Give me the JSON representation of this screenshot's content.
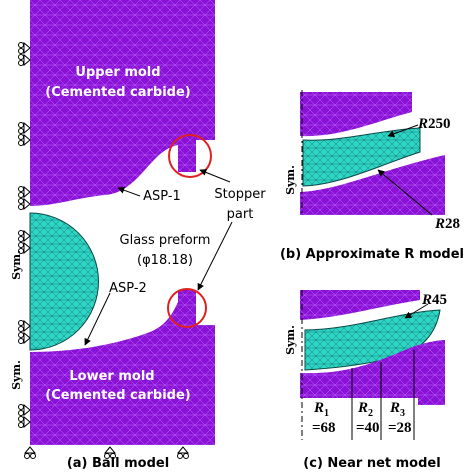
{
  "panel_a": {
    "caption": "(a) Ball model",
    "upper_mold": [
      "Upper mold",
      "(Cemented carbide)"
    ],
    "preform": [
      "Glass preform",
      "(φ18.18)"
    ],
    "lower_mold": [
      "Lower mold",
      "(Cemented carbide)"
    ],
    "asp1": "ASP-1",
    "asp2": "ASP-2",
    "stopper": [
      "Stopper",
      "part"
    ],
    "sym_labels": [
      "Sym.",
      "Sym."
    ]
  },
  "panel_b": {
    "caption": "(b) Approximate R model",
    "sym": "Sym.",
    "r_upper": {
      "symbol": "R",
      "number": "250"
    },
    "r_lower": {
      "symbol": "R",
      "number": "28"
    }
  },
  "panel_c": {
    "caption": "(c) Near net model",
    "sym": "Sym.",
    "r_top": {
      "symbol": "R",
      "number": "45"
    },
    "radii": [
      {
        "symbol": "R",
        "subscript": "1",
        "value": "=68"
      },
      {
        "symbol": "R",
        "subscript": "2",
        "value": "=40"
      },
      {
        "symbol": "R",
        "subscript": "3",
        "value": "=28"
      }
    ]
  }
}
